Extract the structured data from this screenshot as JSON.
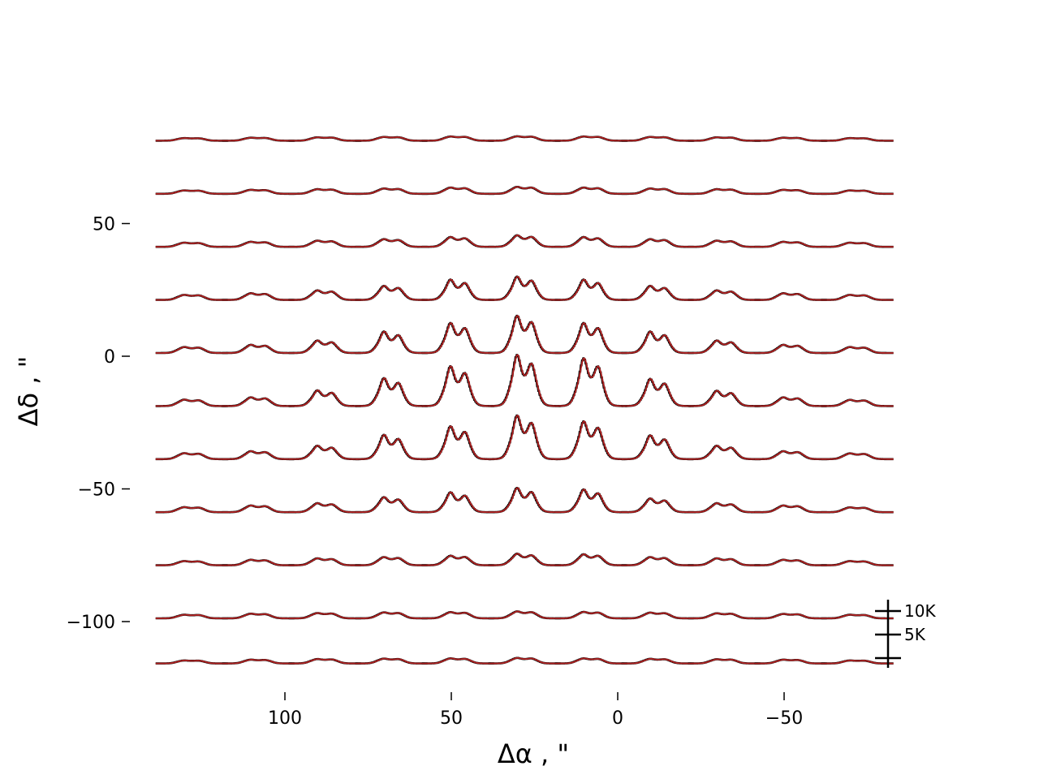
{
  "chart_data": {
    "type": "line",
    "title": "",
    "xlabel": "Δα , \"",
    "ylabel": "Δδ , \"",
    "x_ticks": [
      {
        "value": 100,
        "label": "100"
      },
      {
        "value": 50,
        "label": "50"
      },
      {
        "value": 0,
        "label": "0"
      },
      {
        "value": -50,
        "label": "−50"
      }
    ],
    "y_ticks": [
      {
        "value": 50,
        "label": "50"
      },
      {
        "value": 0,
        "label": "0"
      },
      {
        "value": -50,
        "label": "−50"
      },
      {
        "value": -100,
        "label": "−100"
      }
    ],
    "xlim": [
      140,
      -85
    ],
    "ylim": [
      -120,
      90
    ],
    "x_inverted": true,
    "grid": false,
    "grid_spacing": 20,
    "column_offsets": [
      128,
      108,
      88,
      68,
      48,
      28,
      8,
      -12,
      -32,
      -52,
      -72
    ],
    "row_offsets": [
      80,
      60,
      40,
      20,
      0,
      -20,
      -40,
      -60,
      -80,
      -100,
      -117
    ],
    "line_profile_amplitude_K": [
      [
        1.6,
        1.8,
        2.0,
        2.2,
        2.4,
        2.5,
        2.4,
        2.2,
        2.0,
        1.8,
        1.6
      ],
      [
        2.0,
        2.3,
        2.6,
        2.9,
        3.3,
        3.6,
        3.3,
        2.9,
        2.6,
        2.3,
        2.0
      ],
      [
        2.4,
        2.8,
        3.3,
        3.9,
        4.7,
        5.3,
        4.7,
        3.9,
        3.3,
        2.8,
        2.4
      ],
      [
        2.8,
        3.5,
        4.6,
        6.1,
        7.9,
        9.0,
        7.9,
        6.1,
        4.6,
        3.5,
        2.8
      ],
      [
        3.2,
        4.1,
        5.6,
        8.3,
        11.6,
        14.4,
        11.6,
        8.3,
        5.6,
        4.1,
        3.2
      ],
      [
        3.4,
        4.3,
        6.6,
        10.8,
        15.4,
        19.8,
        18.5,
        10.5,
        6.5,
        4.3,
        3.3
      ],
      [
        3.2,
        4.0,
        5.9,
        9.4,
        12.7,
        16.9,
        14.6,
        9.2,
        5.9,
        4.0,
        3.1
      ],
      [
        2.8,
        3.5,
        4.4,
        6.4,
        7.8,
        9.4,
        8.8,
        6.0,
        4.4,
        3.5,
        2.7
      ],
      [
        2.4,
        3.0,
        3.6,
        4.1,
        4.6,
        5.3,
        5.1,
        4.1,
        3.6,
        3.0,
        2.4
      ],
      [
        2.1,
        2.6,
        2.9,
        3.2,
        3.3,
        3.6,
        3.4,
        3.1,
        2.8,
        2.5,
        2.1
      ],
      [
        1.8,
        2.2,
        2.5,
        2.7,
        2.8,
        3.0,
        2.8,
        2.6,
        2.4,
        2.2,
        1.8
      ]
    ],
    "line_color": "#b22222",
    "data_color": "#000000",
    "scale_bar": {
      "ticks_K": [
        0,
        5,
        10
      ],
      "labels": [
        "10K",
        "5K"
      ],
      "position": "bottom-right"
    }
  }
}
